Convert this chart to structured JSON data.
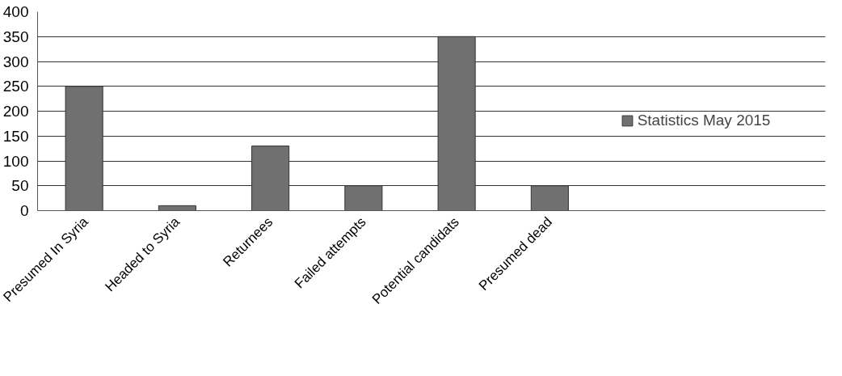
{
  "chart_data": {
    "type": "bar",
    "categories": [
      "Presumed In Syria",
      "Headed to Syria",
      "Returnees",
      "Failed attempts",
      "Potential candidats",
      "Presumed dead"
    ],
    "series": [
      {
        "name": "Statistics May 2015",
        "color": "#707070",
        "values": [
          250,
          10,
          130,
          50,
          350,
          50
        ]
      }
    ],
    "ylim": [
      0,
      400
    ],
    "yticks": [
      0,
      50,
      100,
      150,
      200,
      250,
      300,
      350,
      400
    ],
    "grid": "y",
    "legend": "right"
  }
}
